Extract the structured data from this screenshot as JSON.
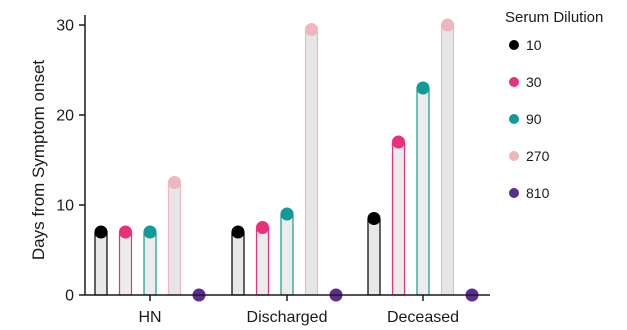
{
  "chart_data": {
    "type": "bar",
    "categories": [
      "HN",
      "Discharged",
      "Deceased"
    ],
    "ylabel": "Days from Symptom onset",
    "xlabel": "",
    "ylim": [
      0,
      30
    ],
    "yticks": [
      0,
      10,
      20,
      30
    ],
    "legend_title": "Serum Dilution",
    "legend_position": "right",
    "grid": false,
    "style": "lollipop bars with dot at top",
    "series": [
      {
        "name": "10",
        "color": "#000000",
        "bar_fill": "#e8e8e8",
        "bar_stroke": "#000000",
        "values": [
          7,
          7,
          8.5
        ]
      },
      {
        "name": "30",
        "color": "#e8317a",
        "bar_fill": "#ececec",
        "bar_stroke": "#e8317a",
        "values": [
          7,
          7.5,
          17
        ]
      },
      {
        "name": "90",
        "color": "#119a96",
        "bar_fill": "#ececec",
        "bar_stroke": "#119a96",
        "values": [
          7,
          9,
          23
        ]
      },
      {
        "name": "270",
        "color": "#efb6bd",
        "bar_fill": "#e6e6e6",
        "bar_stroke": "#efb6bd",
        "values": [
          12.5,
          29.5,
          30
        ]
      },
      {
        "name": "810",
        "color": "#5a2d91",
        "bar_fill": "#ececec",
        "bar_stroke": "#5a2d91",
        "values": [
          0,
          0,
          0
        ]
      }
    ]
  }
}
